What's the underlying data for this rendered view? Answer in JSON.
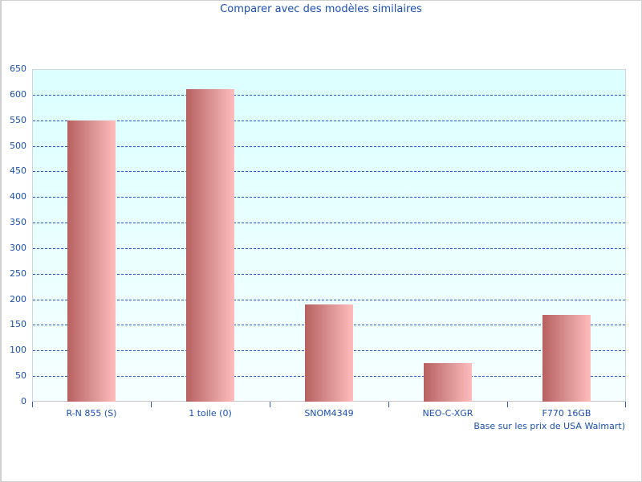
{
  "chart_data": {
    "type": "bar",
    "title": "Comparer avec des modèles similaires",
    "xlabel": "",
    "ylabel": "",
    "categories": [
      "R-N 855 (S)",
      "1 toile (0)",
      "SNOM4349",
      "NEO-C-XGR",
      "F770 16GB"
    ],
    "values": [
      550,
      610,
      190,
      75,
      170
    ],
    "ylim": [
      0,
      650
    ],
    "yticks": [
      0,
      50,
      100,
      150,
      200,
      250,
      300,
      350,
      400,
      450,
      500,
      550,
      600,
      650
    ],
    "grid": true,
    "legend": null,
    "annotation": "Base sur les prix de USA Walmart)"
  },
  "colors": {
    "text": "#1a4fb4",
    "grid": "#2a5cc4",
    "bar_dark": "#b86060",
    "bar_light": "#ffbcbc",
    "plot_bg_top": "#dcffff",
    "plot_bg_bottom": "#f6ffff"
  }
}
